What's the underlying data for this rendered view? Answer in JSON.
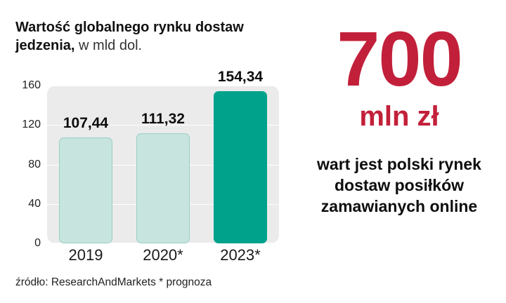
{
  "header": {
    "title_bold": "Wartość globalnego rynku dostaw jedzenia,",
    "title_regular": "w mld dol."
  },
  "chart_data": {
    "type": "bar",
    "title": "Wartość globalnego rynku dostaw jedzenia, w mld dol.",
    "categories": [
      "2019",
      "2020*",
      "2023*"
    ],
    "values": [
      107.44,
      111.32,
      154.34
    ],
    "value_labels": [
      "107,44",
      "111,32",
      "154,34"
    ],
    "ylabel": "",
    "xlabel": "",
    "ylim": [
      0,
      160
    ],
    "yticks": [
      0,
      40,
      80,
      120,
      160
    ],
    "ytick_labels_top_down": [
      "160",
      "120",
      "80",
      "40",
      "0"
    ],
    "grid": true,
    "legend": false,
    "panel_color": "#ebebeb",
    "bar_colors": [
      "#c7e4de",
      "#c7e4de",
      "#00a28b"
    ],
    "bar_border_colors": [
      "#9bcfc5",
      "#9bcfc5",
      "#00a28b"
    ]
  },
  "source_note": "źródło: ResearchAndMarkets * prognoza",
  "right_panel": {
    "big_number": "700",
    "unit": "mln zł",
    "desc_lines": [
      "wart jest polski rynek",
      "dostaw posiłków",
      "zamawianych online"
    ],
    "accent_color": "#c2203a"
  }
}
